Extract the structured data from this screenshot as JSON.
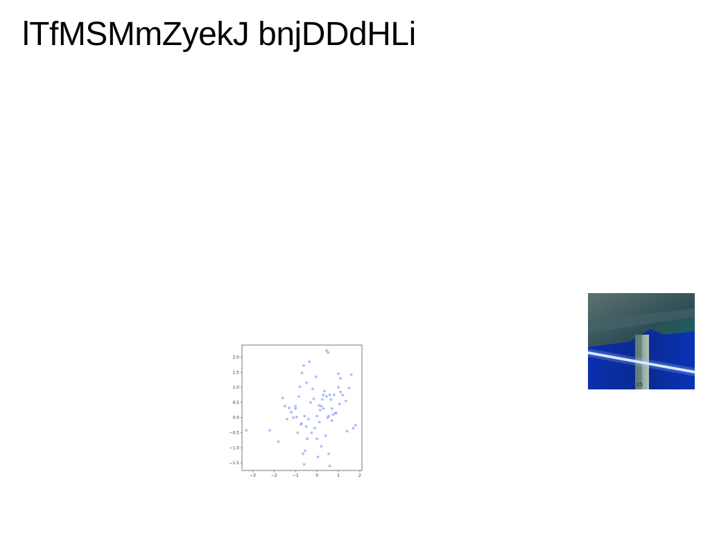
{
  "page": {
    "title": "lTfMSMmZyekJ bnjDDdHLi"
  },
  "photo": {
    "description_icon": "image-icon",
    "colors": {
      "ceiling": "#3c5a60",
      "wall": "#0b2fa5",
      "light": "#e8f4ff",
      "pillar": "#8fa8a0"
    },
    "sign_text": "25"
  },
  "chart_data": {
    "type": "scatter",
    "title": "",
    "xlabel": "",
    "ylabel": "",
    "xlim": [
      -3.5,
      2.1
    ],
    "ylim": [
      -1.75,
      2.4
    ],
    "xticks": [
      -3,
      -2,
      -1,
      0,
      1,
      2
    ],
    "yticks": [
      -1.5,
      -1.0,
      -0.5,
      0.0,
      0.5,
      1.0,
      1.5,
      2.0
    ],
    "xtick_labels": [
      "−3",
      "−2",
      "−1",
      "0",
      "1",
      "2"
    ],
    "ytick_labels": [
      "−1.5",
      "−1.0",
      "−0.5",
      "0.0",
      "0.5",
      "1.0",
      "1.5",
      "2.0"
    ],
    "marker_color": "#8c9eff",
    "grid": false,
    "points": [
      [
        -3.3,
        -0.42
      ],
      [
        -2.2,
        -0.42
      ],
      [
        -1.8,
        -0.8
      ],
      [
        -1.6,
        0.65
      ],
      [
        -1.5,
        0.38
      ],
      [
        -1.3,
        0.32
      ],
      [
        -1.2,
        0.18
      ],
      [
        -1.1,
        0.0
      ],
      [
        -1.0,
        0.38
      ],
      [
        -1.0,
        0.3
      ],
      [
        -0.95,
        0.02
      ],
      [
        -0.9,
        -0.5
      ],
      [
        -0.85,
        0.7
      ],
      [
        -0.8,
        1.02
      ],
      [
        -0.75,
        -0.22
      ],
      [
        -0.72,
        -0.2
      ],
      [
        -0.7,
        1.48
      ],
      [
        -0.65,
        -1.2
      ],
      [
        -0.62,
        1.72
      ],
      [
        -0.6,
        -1.55
      ],
      [
        -0.58,
        0.05
      ],
      [
        -0.55,
        -1.1
      ],
      [
        -0.5,
        -0.3
      ],
      [
        -0.48,
        1.15
      ],
      [
        -0.45,
        -0.7
      ],
      [
        -0.4,
        -0.05
      ],
      [
        -0.35,
        1.85
      ],
      [
        -0.3,
        0.5
      ],
      [
        -0.25,
        -0.5
      ],
      [
        -0.2,
        0.95
      ],
      [
        -0.1,
        -0.35
      ],
      [
        -0.05,
        1.35
      ],
      [
        0.0,
        -0.7
      ],
      [
        0.0,
        0.05
      ],
      [
        0.05,
        -1.3
      ],
      [
        0.1,
        0.4
      ],
      [
        0.12,
        -0.15
      ],
      [
        0.15,
        0.25
      ],
      [
        0.2,
        -0.95
      ],
      [
        0.25,
        0.6
      ],
      [
        0.3,
        0.75
      ],
      [
        0.3,
        0.3
      ],
      [
        0.35,
        0.88
      ],
      [
        0.4,
        -0.6
      ],
      [
        0.45,
        0.7
      ],
      [
        0.45,
        2.22
      ],
      [
        0.5,
        0.0
      ],
      [
        0.52,
        2.15
      ],
      [
        0.55,
        0.05
      ],
      [
        0.55,
        -1.2
      ],
      [
        0.6,
        0.75
      ],
      [
        0.6,
        -1.6
      ],
      [
        0.65,
        0.6
      ],
      [
        0.7,
        0.3
      ],
      [
        0.75,
        0.1
      ],
      [
        0.8,
        0.75
      ],
      [
        0.85,
        0.15
      ],
      [
        0.9,
        0.15
      ],
      [
        1.0,
        1.0
      ],
      [
        1.0,
        1.45
      ],
      [
        1.05,
        0.45
      ],
      [
        1.1,
        1.3
      ],
      [
        1.1,
        0.85
      ],
      [
        1.2,
        0.75
      ],
      [
        1.35,
        0.55
      ],
      [
        1.4,
        -0.45
      ],
      [
        1.5,
        0.98
      ],
      [
        1.6,
        1.42
      ],
      [
        1.7,
        -0.35
      ],
      [
        1.8,
        -0.25
      ],
      [
        -1.4,
        -0.05
      ],
      [
        0.2,
        0.38
      ],
      [
        -0.15,
        0.62
      ],
      [
        0.7,
        -0.1
      ]
    ]
  }
}
